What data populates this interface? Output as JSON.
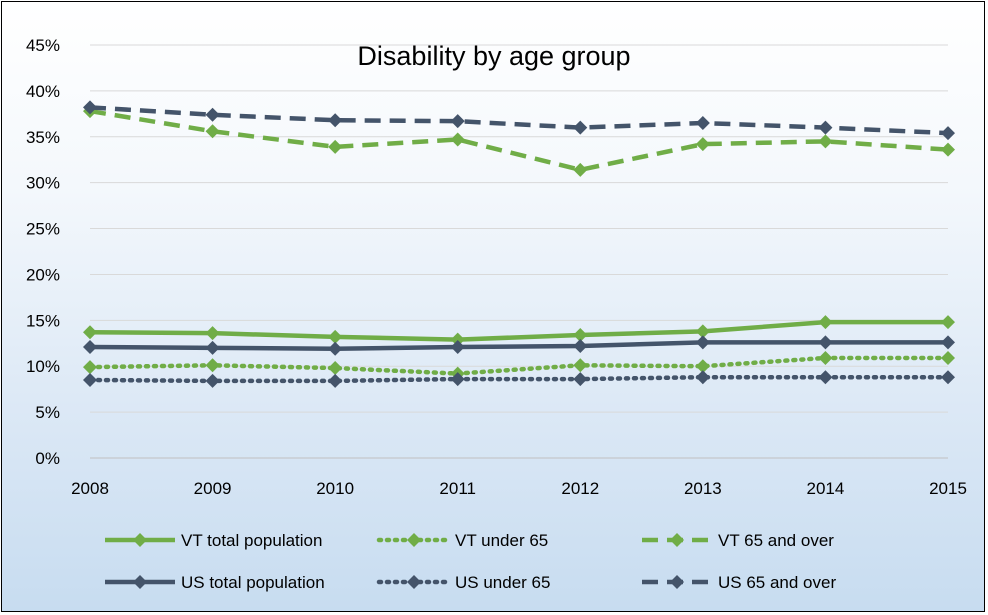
{
  "chart_data": {
    "type": "line",
    "title": "Disability by age group",
    "xlabel": "",
    "ylabel": "",
    "x": [
      "2008",
      "2009",
      "2010",
      "2011",
      "2012",
      "2013",
      "2014",
      "2015"
    ],
    "ylim": [
      0,
      0.45
    ],
    "yticks": [
      "0%",
      "5%",
      "10%",
      "15%",
      "20%",
      "25%",
      "30%",
      "35%",
      "40%",
      "45%"
    ],
    "grid": true,
    "legend_position": "bottom",
    "series": [
      {
        "name": "VT total population",
        "color": "#70ad47",
        "dash": "solid",
        "marker": "diamond",
        "values": [
          0.137,
          0.136,
          0.132,
          0.129,
          0.134,
          0.138,
          0.148,
          0.148
        ]
      },
      {
        "name": "VT under 65",
        "color": "#70ad47",
        "dash": "dot",
        "marker": "diamond",
        "values": [
          0.099,
          0.101,
          0.098,
          0.092,
          0.101,
          0.1,
          0.109,
          0.109
        ]
      },
      {
        "name": "VT 65 and over",
        "color": "#70ad47",
        "dash": "dash",
        "marker": "diamond",
        "values": [
          0.378,
          0.356,
          0.339,
          0.347,
          0.314,
          0.342,
          0.345,
          0.336
        ]
      },
      {
        "name": "US total population",
        "color": "#44546a",
        "dash": "solid",
        "marker": "diamond",
        "values": [
          0.121,
          0.12,
          0.119,
          0.121,
          0.122,
          0.126,
          0.126,
          0.126
        ]
      },
      {
        "name": "US under 65",
        "color": "#44546a",
        "dash": "dot",
        "marker": "diamond",
        "values": [
          0.085,
          0.084,
          0.084,
          0.086,
          0.086,
          0.088,
          0.088,
          0.088
        ]
      },
      {
        "name": "US 65 and over",
        "color": "#44546a",
        "dash": "dash",
        "marker": "diamond",
        "values": [
          0.382,
          0.374,
          0.368,
          0.367,
          0.36,
          0.365,
          0.36,
          0.354
        ]
      }
    ]
  }
}
